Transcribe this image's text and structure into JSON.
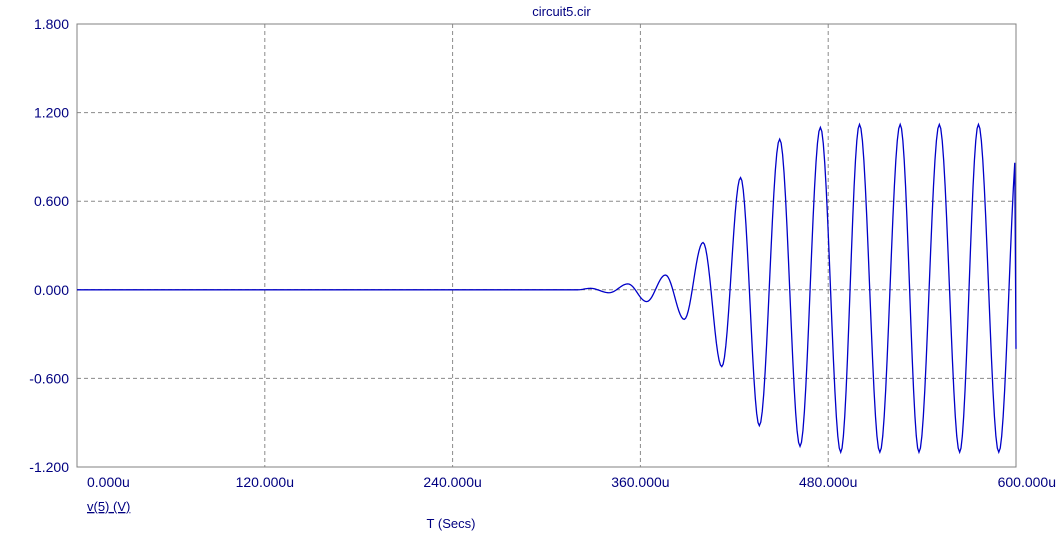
{
  "chart_data": {
    "type": "line",
    "title": "circuit5.cir",
    "xlabel": "T (Secs)",
    "ylabel": "",
    "xlim": [
      0,
      600
    ],
    "ylim": [
      -1.2,
      1.8
    ],
    "x_unit": "us",
    "grid": true,
    "x_ticks": [
      0,
      120,
      240,
      360,
      480,
      600
    ],
    "x_tick_labels": [
      "0.000u",
      "120.000u",
      "240.000u",
      "360.000u",
      "480.000u",
      "600.000u"
    ],
    "y_ticks": [
      -1.2,
      -0.6,
      0.0,
      0.6,
      1.2,
      1.8
    ],
    "y_tick_labels": [
      "-1.200",
      "-0.600",
      "0.000",
      "0.600",
      "1.200",
      "1.800"
    ],
    "series": [
      {
        "name": "v(5) (V)",
        "color": "#0000c8",
        "peaks": [
          {
            "x": 320,
            "y": 0.0
          },
          {
            "x": 328,
            "y": 0.01
          },
          {
            "x": 340,
            "y": -0.02
          },
          {
            "x": 352,
            "y": 0.04
          },
          {
            "x": 364,
            "y": -0.08
          },
          {
            "x": 376,
            "y": 0.1
          },
          {
            "x": 388,
            "y": -0.2
          },
          {
            "x": 400,
            "y": 0.32
          },
          {
            "x": 412,
            "y": -0.52
          },
          {
            "x": 424,
            "y": 0.76
          },
          {
            "x": 436,
            "y": -0.92
          },
          {
            "x": 449,
            "y": 1.02
          },
          {
            "x": 462,
            "y": -1.06
          },
          {
            "x": 475,
            "y": 1.1
          },
          {
            "x": 488,
            "y": -1.1
          },
          {
            "x": 500,
            "y": 1.12
          },
          {
            "x": 513,
            "y": -1.1
          },
          {
            "x": 526,
            "y": 1.12
          },
          {
            "x": 538,
            "y": -1.1
          },
          {
            "x": 551,
            "y": 1.12
          },
          {
            "x": 564,
            "y": -1.1
          },
          {
            "x": 576,
            "y": 1.12
          },
          {
            "x": 589,
            "y": -1.1
          },
          {
            "x": 602,
            "y": 1.1
          }
        ],
        "x_end": 600,
        "y_end": -0.4
      }
    ]
  }
}
